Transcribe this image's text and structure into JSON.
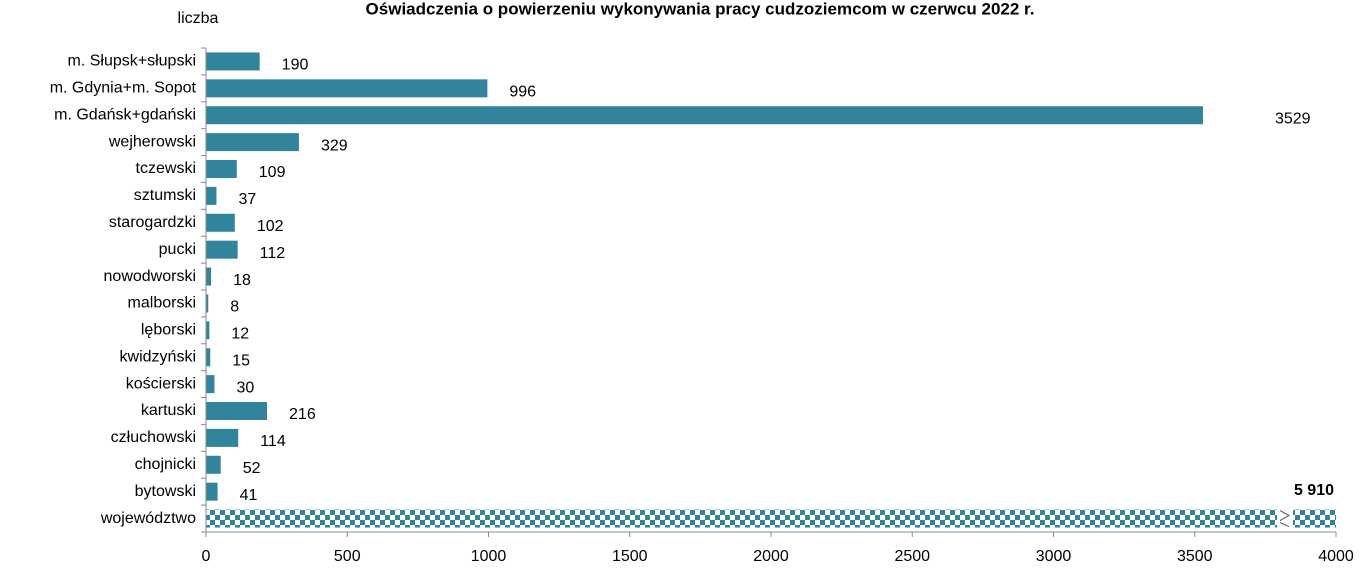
{
  "chart_data": {
    "type": "bar",
    "orientation": "horizontal",
    "title": "Oświadczenia o powierzeniu wykonywania pracy cudzoziemcom w czerwcu 2022 r.",
    "ylabel": "liczba",
    "categories": [
      "m. Słupsk+słupski",
      "m. Gdynia+m. Sopot",
      "m. Gdańsk+gdański",
      "wejherowski",
      "tczewski",
      "sztumski",
      "starogardzki",
      "pucki",
      "nowodworski",
      "malborski",
      "lęborski",
      "kwidzyński",
      "kościerski",
      "kartuski",
      "człuchowski",
      "chojnicki",
      "bytowski",
      "województwo"
    ],
    "values": [
      190,
      996,
      3529,
      329,
      109,
      37,
      102,
      112,
      18,
      8,
      12,
      15,
      30,
      216,
      114,
      52,
      41,
      5910
    ],
    "value_labels": [
      "190",
      "996",
      "3529",
      "329",
      "109",
      "37",
      "102",
      "112",
      "18",
      "8",
      "12",
      "15",
      "30",
      "216",
      "114",
      "52",
      "41",
      "5 910"
    ],
    "color": "#31849b",
    "xlim": [
      0,
      4000
    ],
    "xticks": [
      0,
      500,
      1000,
      1500,
      2000,
      2500,
      3000,
      3500,
      4000
    ],
    "grid": false
  }
}
